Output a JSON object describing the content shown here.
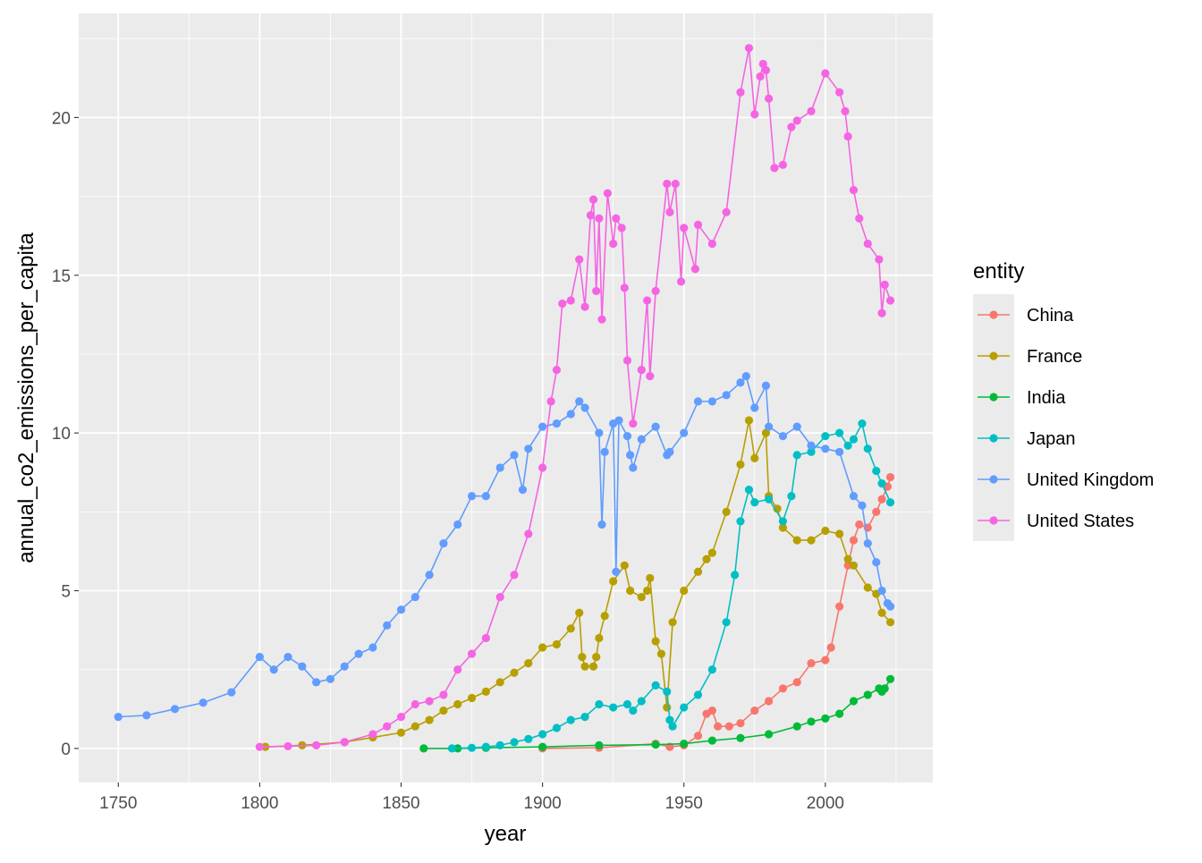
{
  "chart_data": {
    "type": "line",
    "xlabel": "year",
    "ylabel": "annual_co2_emissions_per_capita",
    "xlim": [
      1736,
      2038
    ],
    "ylim": [
      -1.08,
      23.3
    ],
    "x_ticks": [
      1750,
      1800,
      1850,
      1900,
      1950,
      2000
    ],
    "y_ticks": [
      0,
      5,
      10,
      15,
      20
    ],
    "grid": true,
    "legend_title": "entity",
    "legend_position": "right",
    "series": [
      {
        "name": "China",
        "color": "#F8766D",
        "points": [
          [
            1900,
            0.0
          ],
          [
            1920,
            0.02
          ],
          [
            1940,
            0.15
          ],
          [
            1945,
            0.05
          ],
          [
            1950,
            0.1
          ],
          [
            1955,
            0.4
          ],
          [
            1958,
            1.1
          ],
          [
            1960,
            1.2
          ],
          [
            1962,
            0.7
          ],
          [
            1966,
            0.7
          ],
          [
            1970,
            0.8
          ],
          [
            1975,
            1.2
          ],
          [
            1980,
            1.5
          ],
          [
            1985,
            1.9
          ],
          [
            1990,
            2.1
          ],
          [
            1995,
            2.7
          ],
          [
            2000,
            2.8
          ],
          [
            2002,
            3.2
          ],
          [
            2005,
            4.5
          ],
          [
            2008,
            5.8
          ],
          [
            2010,
            6.6
          ],
          [
            2012,
            7.1
          ],
          [
            2015,
            7.0
          ],
          [
            2018,
            7.5
          ],
          [
            2020,
            7.9
          ],
          [
            2022,
            8.3
          ],
          [
            2023,
            8.6
          ]
        ]
      },
      {
        "name": "France",
        "color": "#B79F00",
        "points": [
          [
            1802,
            0.05
          ],
          [
            1815,
            0.1
          ],
          [
            1830,
            0.2
          ],
          [
            1840,
            0.35
          ],
          [
            1850,
            0.5
          ],
          [
            1855,
            0.7
          ],
          [
            1860,
            0.9
          ],
          [
            1865,
            1.2
          ],
          [
            1870,
            1.4
          ],
          [
            1875,
            1.6
          ],
          [
            1880,
            1.8
          ],
          [
            1885,
            2.1
          ],
          [
            1890,
            2.4
          ],
          [
            1895,
            2.7
          ],
          [
            1900,
            3.2
          ],
          [
            1905,
            3.3
          ],
          [
            1910,
            3.8
          ],
          [
            1913,
            4.3
          ],
          [
            1914,
            2.9
          ],
          [
            1915,
            2.6
          ],
          [
            1918,
            2.6
          ],
          [
            1919,
            2.9
          ],
          [
            1920,
            3.5
          ],
          [
            1922,
            4.2
          ],
          [
            1925,
            5.3
          ],
          [
            1929,
            5.8
          ],
          [
            1931,
            5.0
          ],
          [
            1935,
            4.8
          ],
          [
            1937,
            5.0
          ],
          [
            1938,
            5.4
          ],
          [
            1940,
            3.4
          ],
          [
            1942,
            3.0
          ],
          [
            1944,
            1.3
          ],
          [
            1946,
            4.0
          ],
          [
            1950,
            5.0
          ],
          [
            1955,
            5.6
          ],
          [
            1958,
            6.0
          ],
          [
            1960,
            6.2
          ],
          [
            1965,
            7.5
          ],
          [
            1970,
            9.0
          ],
          [
            1973,
            10.4
          ],
          [
            1975,
            9.2
          ],
          [
            1979,
            10.0
          ],
          [
            1980,
            8.0
          ],
          [
            1983,
            7.6
          ],
          [
            1985,
            7.0
          ],
          [
            1990,
            6.6
          ],
          [
            1995,
            6.6
          ],
          [
            2000,
            6.9
          ],
          [
            2005,
            6.8
          ],
          [
            2008,
            6.0
          ],
          [
            2010,
            5.8
          ],
          [
            2015,
            5.1
          ],
          [
            2018,
            4.9
          ],
          [
            2020,
            4.3
          ],
          [
            2023,
            4.0
          ]
        ]
      },
      {
        "name": "India",
        "color": "#00BA38",
        "points": [
          [
            1858,
            0.0
          ],
          [
            1870,
            0.0
          ],
          [
            1880,
            0.02
          ],
          [
            1900,
            0.05
          ],
          [
            1920,
            0.1
          ],
          [
            1940,
            0.12
          ],
          [
            1950,
            0.15
          ],
          [
            1960,
            0.25
          ],
          [
            1970,
            0.33
          ],
          [
            1980,
            0.45
          ],
          [
            1990,
            0.7
          ],
          [
            1995,
            0.85
          ],
          [
            2000,
            0.95
          ],
          [
            2005,
            1.1
          ],
          [
            2010,
            1.5
          ],
          [
            2015,
            1.7
          ],
          [
            2019,
            1.9
          ],
          [
            2020,
            1.8
          ],
          [
            2021,
            1.9
          ],
          [
            2023,
            2.2
          ]
        ]
      },
      {
        "name": "Japan",
        "color": "#00BFC4",
        "points": [
          [
            1868,
            0.0
          ],
          [
            1875,
            0.02
          ],
          [
            1880,
            0.05
          ],
          [
            1885,
            0.1
          ],
          [
            1890,
            0.2
          ],
          [
            1895,
            0.3
          ],
          [
            1900,
            0.45
          ],
          [
            1905,
            0.65
          ],
          [
            1910,
            0.9
          ],
          [
            1915,
            1.0
          ],
          [
            1920,
            1.4
          ],
          [
            1925,
            1.3
          ],
          [
            1930,
            1.4
          ],
          [
            1932,
            1.2
          ],
          [
            1935,
            1.5
          ],
          [
            1940,
            2.0
          ],
          [
            1944,
            1.8
          ],
          [
            1945,
            0.9
          ],
          [
            1946,
            0.7
          ],
          [
            1950,
            1.3
          ],
          [
            1955,
            1.7
          ],
          [
            1960,
            2.5
          ],
          [
            1965,
            4.0
          ],
          [
            1968,
            5.5
          ],
          [
            1970,
            7.2
          ],
          [
            1973,
            8.2
          ],
          [
            1975,
            7.8
          ],
          [
            1980,
            7.9
          ],
          [
            1985,
            7.2
          ],
          [
            1988,
            8.0
          ],
          [
            1990,
            9.3
          ],
          [
            1995,
            9.4
          ],
          [
            2000,
            9.9
          ],
          [
            2005,
            10.0
          ],
          [
            2008,
            9.6
          ],
          [
            2010,
            9.8
          ],
          [
            2013,
            10.3
          ],
          [
            2015,
            9.5
          ],
          [
            2018,
            8.8
          ],
          [
            2020,
            8.4
          ],
          [
            2023,
            7.8
          ]
        ]
      },
      {
        "name": "United Kingdom",
        "color": "#619CFF",
        "points": [
          [
            1750,
            1.0
          ],
          [
            1760,
            1.05
          ],
          [
            1770,
            1.25
          ],
          [
            1780,
            1.45
          ],
          [
            1790,
            1.78
          ],
          [
            1800,
            2.9
          ],
          [
            1805,
            2.5
          ],
          [
            1810,
            2.9
          ],
          [
            1815,
            2.6
          ],
          [
            1820,
            2.1
          ],
          [
            1825,
            2.2
          ],
          [
            1830,
            2.6
          ],
          [
            1835,
            3.0
          ],
          [
            1840,
            3.2
          ],
          [
            1845,
            3.9
          ],
          [
            1850,
            4.4
          ],
          [
            1855,
            4.8
          ],
          [
            1860,
            5.5
          ],
          [
            1865,
            6.5
          ],
          [
            1870,
            7.1
          ],
          [
            1875,
            8.0
          ],
          [
            1880,
            8.0
          ],
          [
            1885,
            8.9
          ],
          [
            1890,
            9.3
          ],
          [
            1893,
            8.2
          ],
          [
            1895,
            9.5
          ],
          [
            1900,
            10.2
          ],
          [
            1905,
            10.3
          ],
          [
            1910,
            10.6
          ],
          [
            1913,
            11.0
          ],
          [
            1915,
            10.8
          ],
          [
            1920,
            10.0
          ],
          [
            1921,
            7.1
          ],
          [
            1922,
            9.4
          ],
          [
            1925,
            10.3
          ],
          [
            1926,
            5.6
          ],
          [
            1927,
            10.4
          ],
          [
            1930,
            9.9
          ],
          [
            1931,
            9.3
          ],
          [
            1932,
            8.9
          ],
          [
            1935,
            9.8
          ],
          [
            1940,
            10.2
          ],
          [
            1944,
            9.3
          ],
          [
            1945,
            9.4
          ],
          [
            1950,
            10.0
          ],
          [
            1955,
            11.0
          ],
          [
            1960,
            11.0
          ],
          [
            1965,
            11.2
          ],
          [
            1970,
            11.6
          ],
          [
            1972,
            11.8
          ],
          [
            1975,
            10.8
          ],
          [
            1979,
            11.5
          ],
          [
            1980,
            10.2
          ],
          [
            1985,
            9.9
          ],
          [
            1990,
            10.2
          ],
          [
            1995,
            9.6
          ],
          [
            2000,
            9.5
          ],
          [
            2005,
            9.4
          ],
          [
            2010,
            8.0
          ],
          [
            2013,
            7.7
          ],
          [
            2015,
            6.5
          ],
          [
            2018,
            5.9
          ],
          [
            2020,
            5.0
          ],
          [
            2022,
            4.6
          ],
          [
            2023,
            4.5
          ]
        ]
      },
      {
        "name": "United States",
        "color": "#F564E3",
        "points": [
          [
            1800,
            0.05
          ],
          [
            1810,
            0.07
          ],
          [
            1820,
            0.1
          ],
          [
            1830,
            0.2
          ],
          [
            1840,
            0.45
          ],
          [
            1845,
            0.7
          ],
          [
            1850,
            1.0
          ],
          [
            1855,
            1.4
          ],
          [
            1860,
            1.5
          ],
          [
            1865,
            1.7
          ],
          [
            1870,
            2.5
          ],
          [
            1875,
            3.0
          ],
          [
            1880,
            3.5
          ],
          [
            1885,
            4.8
          ],
          [
            1890,
            5.5
          ],
          [
            1895,
            6.8
          ],
          [
            1900,
            8.9
          ],
          [
            1903,
            11.0
          ],
          [
            1905,
            12.0
          ],
          [
            1907,
            14.1
          ],
          [
            1910,
            14.2
          ],
          [
            1913,
            15.5
          ],
          [
            1915,
            14.0
          ],
          [
            1917,
            16.9
          ],
          [
            1918,
            17.4
          ],
          [
            1919,
            14.5
          ],
          [
            1920,
            16.8
          ],
          [
            1921,
            13.6
          ],
          [
            1923,
            17.6
          ],
          [
            1925,
            16.0
          ],
          [
            1926,
            16.8
          ],
          [
            1928,
            16.5
          ],
          [
            1929,
            14.6
          ],
          [
            1930,
            12.3
          ],
          [
            1932,
            10.3
          ],
          [
            1935,
            12.0
          ],
          [
            1937,
            14.2
          ],
          [
            1938,
            11.8
          ],
          [
            1940,
            14.5
          ],
          [
            1944,
            17.9
          ],
          [
            1945,
            17.0
          ],
          [
            1947,
            17.9
          ],
          [
            1949,
            14.8
          ],
          [
            1950,
            16.5
          ],
          [
            1954,
            15.2
          ],
          [
            1955,
            16.6
          ],
          [
            1960,
            16.0
          ],
          [
            1965,
            17.0
          ],
          [
            1970,
            20.8
          ],
          [
            1973,
            22.2
          ],
          [
            1975,
            20.1
          ],
          [
            1977,
            21.3
          ],
          [
            1978,
            21.7
          ],
          [
            1979,
            21.5
          ],
          [
            1980,
            20.6
          ],
          [
            1982,
            18.4
          ],
          [
            1985,
            18.5
          ],
          [
            1988,
            19.7
          ],
          [
            1990,
            19.9
          ],
          [
            1995,
            20.2
          ],
          [
            2000,
            21.4
          ],
          [
            2005,
            20.8
          ],
          [
            2007,
            20.2
          ],
          [
            2008,
            19.4
          ],
          [
            2010,
            17.7
          ],
          [
            2012,
            16.8
          ],
          [
            2015,
            16.0
          ],
          [
            2019,
            15.5
          ],
          [
            2020,
            13.8
          ],
          [
            2021,
            14.7
          ],
          [
            2023,
            14.2
          ]
        ]
      }
    ]
  }
}
